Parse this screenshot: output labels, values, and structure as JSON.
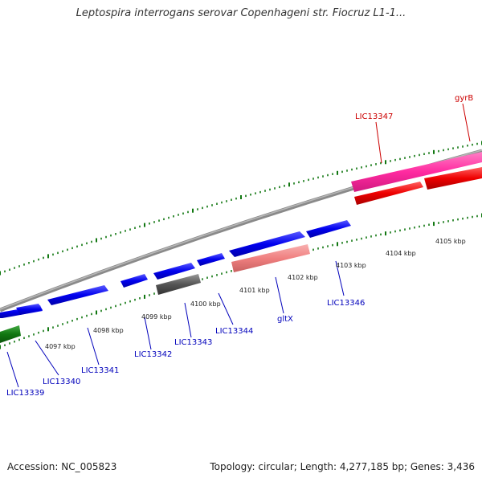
{
  "title": "Leptospira interrogans serovar Copenhageni str. Fiocruz L1-1...",
  "accession": "Accession: NC_005823",
  "summary": "Topology: circular; Length: 4,277,185 bp; Genes: 3,436",
  "colors": {
    "forward_gene": "#0000ee",
    "forward_highlight": "#ff2aa0",
    "forward_red": "#ee0000",
    "reverse_salmon": "#f08080",
    "reverse_gray": "#555555",
    "reverse_green": "#117711",
    "tick": "#117711",
    "backbone": "#888888",
    "label_blue": "#0000bb",
    "label_red": "#cc0000"
  },
  "kbp_labels": [
    "4097 kbp",
    "4098 kbp",
    "4099 kbp",
    "4100 kbp",
    "4101 kbp",
    "4102 kbp",
    "4103 kbp",
    "4104 kbp",
    "4105 kbp"
  ],
  "gene_labels": [
    {
      "text": "LIC13339",
      "color": "blue"
    },
    {
      "text": "LIC13340",
      "color": "blue"
    },
    {
      "text": "LIC13341",
      "color": "blue"
    },
    {
      "text": "LIC13342",
      "color": "blue"
    },
    {
      "text": "LIC13343",
      "color": "blue"
    },
    {
      "text": "LIC13344",
      "color": "blue"
    },
    {
      "text": "gltX",
      "color": "blue"
    },
    {
      "text": "LIC13346",
      "color": "blue"
    },
    {
      "text": "LIC13347",
      "color": "red"
    },
    {
      "text": "gyrB",
      "color": "red"
    }
  ]
}
